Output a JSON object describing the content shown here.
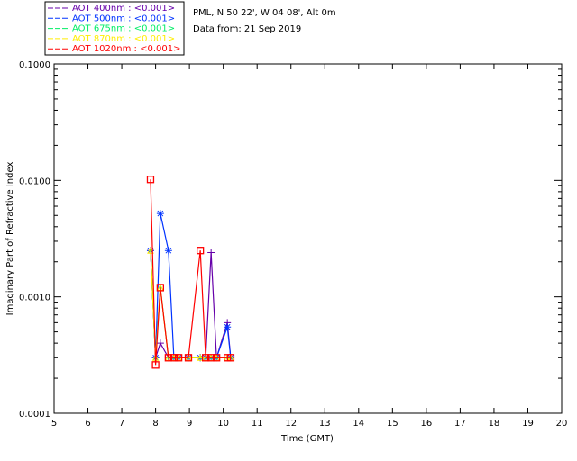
{
  "chart_data": {
    "type": "line",
    "title": "PML, N 50 22', W 04 08', Alt 0m",
    "subtitle": "Data from: 21 Sep 2019",
    "xlabel": "Time (GMT)",
    "ylabel": "Imaginary Part of Refractive Index",
    "xlim": [
      5,
      20
    ],
    "ylim": [
      0.0001,
      0.1
    ],
    "yscale": "log",
    "xticks": [
      "5",
      "6",
      "7",
      "8",
      "9",
      "10",
      "11",
      "12",
      "13",
      "14",
      "15",
      "16",
      "17",
      "18",
      "19",
      "20"
    ],
    "yticks": [
      "0.0001",
      "0.0010",
      "0.0100",
      "0.1000"
    ],
    "legend_placement": "top-left outside",
    "series": [
      {
        "name": "AOT  400nm : <0.001>",
        "color": "#6600aa",
        "marker": "plus",
        "x": [
          7.85,
          8.0,
          8.14,
          8.38,
          8.54,
          8.68,
          8.97,
          9.32,
          9.48,
          9.64,
          9.8,
          10.12,
          10.22
        ],
        "values": [
          0.0025,
          0.0003,
          0.0004,
          0.0003,
          0.0003,
          0.0003,
          0.0003,
          0.0003,
          0.0003,
          0.0024,
          0.0003,
          0.0006,
          0.0003
        ]
      },
      {
        "name": "AOT  500nm : <0.001>",
        "color": "#0033ff",
        "marker": "asterisk",
        "x": [
          7.85,
          8.0,
          8.14,
          8.38,
          8.54,
          8.68,
          8.97,
          9.32,
          9.48,
          9.64,
          9.8,
          10.12,
          10.22
        ],
        "values": [
          0.0025,
          0.0003,
          0.0052,
          0.0025,
          0.0003,
          0.0003,
          0.0003,
          0.0003,
          0.0003,
          0.0003,
          0.0003,
          0.00055,
          0.0003
        ]
      },
      {
        "name": "AOT  675nm : <0.001>",
        "color": "#00ee66",
        "marker": "dot",
        "x": [
          7.85,
          8.0,
          8.14,
          8.38,
          8.54,
          8.68,
          8.97,
          9.32,
          9.48,
          9.64,
          9.8,
          10.12,
          10.22
        ],
        "values": [
          0.0025,
          0.0003,
          0.0012,
          0.0003,
          0.0003,
          0.0003,
          0.0003,
          0.0003,
          0.0003,
          0.0003,
          0.0003,
          0.0003,
          0.0003
        ]
      },
      {
        "name": "AOT  870nm : <0.001>",
        "color": "#ffee00",
        "marker": "triangle",
        "x": [
          7.85,
          8.0,
          8.14,
          8.38,
          8.54,
          8.68,
          8.97,
          9.32,
          9.48,
          9.64,
          9.8,
          10.12,
          10.22
        ],
        "values": [
          0.0025,
          0.0003,
          0.0012,
          0.0003,
          0.0003,
          0.0003,
          0.0003,
          0.0003,
          0.0003,
          0.0003,
          0.0003,
          0.0003,
          0.0003
        ]
      },
      {
        "name": "AOT 1020nm : <0.001>",
        "color": "#ff0000",
        "marker": "square",
        "x": [
          7.85,
          8.0,
          8.14,
          8.38,
          8.54,
          8.68,
          8.97,
          9.32,
          9.48,
          9.64,
          9.8,
          10.12,
          10.22
        ],
        "values": [
          0.0102,
          0.00026,
          0.0012,
          0.0003,
          0.0003,
          0.0003,
          0.0003,
          0.0025,
          0.0003,
          0.0003,
          0.0003,
          0.0003,
          0.0003
        ]
      }
    ]
  }
}
